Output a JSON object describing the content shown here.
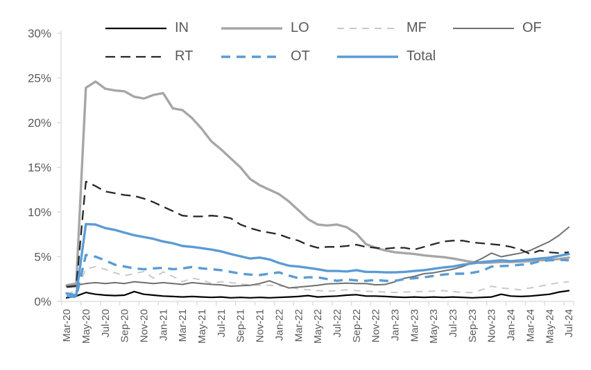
{
  "chart_data": {
    "type": "line",
    "title": "",
    "xlabel": "",
    "ylabel": "",
    "ylim": [
      0,
      30
    ],
    "y_tick_labels": [
      "0%",
      "5%",
      "10%",
      "15%",
      "20%",
      "25%",
      "30%"
    ],
    "grid": false,
    "legend_position": "top",
    "legend_rows": [
      [
        "IN",
        "LO",
        "MF",
        "OF"
      ],
      [
        "RT",
        "OT",
        "Total"
      ]
    ],
    "x": [
      "Mar-20",
      "Apr-20",
      "May-20",
      "Jun-20",
      "Jul-20",
      "Aug-20",
      "Sep-20",
      "Oct-20",
      "Nov-20",
      "Dec-20",
      "Jan-21",
      "Feb-21",
      "Mar-21",
      "Apr-21",
      "May-21",
      "Jun-21",
      "Jul-21",
      "Aug-21",
      "Sep-21",
      "Oct-21",
      "Nov-21",
      "Dec-21",
      "Jan-22",
      "Feb-22",
      "Mar-22",
      "Apr-22",
      "May-22",
      "Jun-22",
      "Jul-22",
      "Aug-22",
      "Sep-22",
      "Oct-22",
      "Nov-22",
      "Dec-22",
      "Jan-23",
      "Feb-23",
      "Mar-23",
      "Apr-23",
      "May-23",
      "Jun-23",
      "Jul-23",
      "Aug-23",
      "Sep-23",
      "Oct-23",
      "Nov-23",
      "Dec-23",
      "Jan-24",
      "Feb-24",
      "Mar-24",
      "Apr-24",
      "May-24",
      "Jun-24",
      "Jul-24"
    ],
    "x_tick_labels": [
      "Mar-20",
      "May-20",
      "Jul-20",
      "Sep-20",
      "Nov-20",
      "Jan-21",
      "Mar-21",
      "May-21",
      "Jul-21",
      "Sep-21",
      "Nov-21",
      "Jan-22",
      "Mar-22",
      "May-22",
      "Jul-22",
      "Sep-22",
      "Nov-22",
      "Jan-23",
      "Mar-23",
      "May-23",
      "Jul-23",
      "Sep-23",
      "Nov-23",
      "Jan-24",
      "Mar-24",
      "May-24",
      "Jul-24"
    ],
    "series": [
      {
        "name": "IN",
        "color": "#000000",
        "style": "solid",
        "width": 2.2,
        "dash": null,
        "values": [
          0.4,
          0.6,
          1.0,
          0.8,
          0.7,
          0.65,
          0.7,
          1.1,
          0.8,
          0.7,
          0.6,
          0.55,
          0.5,
          0.55,
          0.5,
          0.45,
          0.5,
          0.4,
          0.45,
          0.4,
          0.45,
          0.4,
          0.45,
          0.5,
          0.55,
          0.65,
          0.5,
          0.55,
          0.6,
          0.7,
          0.75,
          0.6,
          0.6,
          0.55,
          0.5,
          0.45,
          0.5,
          0.45,
          0.5,
          0.45,
          0.5,
          0.45,
          0.4,
          0.45,
          0.5,
          0.8,
          0.6,
          0.55,
          0.6,
          0.7,
          0.8,
          1.05,
          1.2
        ]
      },
      {
        "name": "LO",
        "color": "#A6A6A6",
        "style": "solid",
        "width": 3.4,
        "dash": null,
        "values": [
          1.8,
          2.0,
          23.9,
          24.6,
          23.8,
          23.6,
          23.5,
          22.9,
          22.7,
          23.1,
          23.3,
          21.6,
          21.4,
          20.5,
          19.3,
          17.9,
          17.0,
          16.0,
          15.0,
          13.7,
          13.0,
          12.5,
          12.0,
          11.2,
          10.2,
          9.2,
          8.6,
          8.5,
          8.6,
          8.3,
          7.6,
          6.4,
          6.0,
          5.7,
          5.5,
          5.4,
          5.3,
          5.15,
          5.05,
          4.95,
          4.8,
          4.6,
          4.4,
          4.3,
          4.35,
          4.4,
          4.4,
          4.45,
          4.5,
          4.6,
          4.65,
          4.75,
          4.9
        ]
      },
      {
        "name": "MF",
        "color": "#C9C9C9",
        "style": "dashed",
        "width": 2.0,
        "dash": "10 8",
        "values": [
          0.8,
          1.2,
          3.6,
          3.9,
          3.6,
          3.2,
          2.9,
          3.1,
          3.35,
          2.6,
          3.3,
          2.8,
          2.2,
          2.6,
          2.4,
          2.0,
          2.2,
          2.1,
          1.95,
          1.85,
          1.8,
          1.8,
          1.75,
          1.6,
          1.4,
          1.3,
          1.2,
          1.15,
          1.2,
          1.3,
          1.2,
          1.15,
          1.1,
          1.05,
          1.0,
          1.05,
          1.1,
          1.1,
          1.15,
          1.2,
          1.1,
          1.0,
          1.0,
          1.3,
          1.7,
          1.5,
          1.4,
          1.3,
          1.5,
          1.7,
          1.9,
          2.1,
          2.2
        ]
      },
      {
        "name": "OF",
        "color": "#6E6E6E",
        "style": "solid",
        "width": 2.0,
        "dash": null,
        "values": [
          1.7,
          1.8,
          2.0,
          2.1,
          2.0,
          2.1,
          2.0,
          2.2,
          2.1,
          2.0,
          2.1,
          2.0,
          1.9,
          2.1,
          2.0,
          1.9,
          1.85,
          1.7,
          1.75,
          1.8,
          2.0,
          2.3,
          1.9,
          1.5,
          1.6,
          1.7,
          1.8,
          1.95,
          2.0,
          2.05,
          2.0,
          2.0,
          1.85,
          1.9,
          2.2,
          2.6,
          2.8,
          3.1,
          3.2,
          3.4,
          3.6,
          3.9,
          4.3,
          4.8,
          5.4,
          5.0,
          5.2,
          5.4,
          5.7,
          6.2,
          6.7,
          7.4,
          8.3
        ]
      },
      {
        "name": "RT",
        "color": "#262626",
        "style": "dashed",
        "width": 2.3,
        "dash": "14 8",
        "values": [
          1.6,
          1.7,
          13.4,
          12.9,
          12.3,
          12.1,
          11.9,
          11.8,
          11.5,
          11.1,
          10.6,
          10.1,
          9.6,
          9.5,
          9.5,
          9.6,
          9.5,
          9.3,
          8.6,
          8.2,
          7.9,
          7.7,
          7.5,
          7.1,
          6.8,
          6.3,
          6.0,
          6.1,
          6.1,
          6.2,
          6.35,
          6.1,
          6.0,
          5.9,
          6.0,
          6.0,
          5.8,
          6.1,
          6.4,
          6.7,
          6.8,
          6.8,
          6.6,
          6.5,
          6.4,
          6.3,
          6.1,
          5.8,
          5.3,
          5.7,
          5.5,
          5.4,
          5.5
        ]
      },
      {
        "name": "OT",
        "color": "#5B9BD5",
        "style": "dashed",
        "width": 3.4,
        "dash": "13 9",
        "values": [
          0.6,
          0.5,
          5.2,
          5.0,
          4.6,
          4.1,
          3.9,
          3.7,
          3.6,
          3.7,
          3.75,
          3.6,
          3.7,
          3.85,
          3.7,
          3.6,
          3.5,
          3.3,
          3.1,
          3.0,
          2.95,
          3.1,
          3.25,
          2.9,
          2.6,
          2.7,
          2.7,
          2.5,
          2.3,
          2.45,
          2.35,
          2.3,
          2.4,
          2.3,
          2.3,
          2.5,
          2.6,
          2.7,
          2.85,
          3.0,
          3.1,
          3.1,
          3.2,
          3.4,
          3.9,
          3.95,
          4.0,
          4.1,
          4.2,
          4.5,
          4.6,
          4.65,
          4.6
        ]
      },
      {
        "name": "Total",
        "color": "#5B9BD5",
        "style": "solid",
        "width": 3.4,
        "dash": null,
        "values": [
          0.9,
          0.7,
          8.65,
          8.6,
          8.2,
          8.0,
          7.7,
          7.4,
          7.2,
          7.0,
          6.7,
          6.5,
          6.2,
          6.1,
          5.95,
          5.8,
          5.6,
          5.3,
          5.05,
          4.8,
          4.9,
          4.7,
          4.3,
          4.0,
          3.9,
          3.75,
          3.6,
          3.4,
          3.4,
          3.35,
          3.5,
          3.3,
          3.3,
          3.25,
          3.25,
          3.3,
          3.4,
          3.5,
          3.65,
          3.8,
          3.9,
          4.1,
          4.25,
          4.4,
          4.5,
          4.6,
          4.5,
          4.6,
          4.7,
          4.8,
          4.9,
          5.1,
          5.3
        ]
      }
    ],
    "axis_color": "#D9D9D9",
    "label_color": "#595959"
  }
}
